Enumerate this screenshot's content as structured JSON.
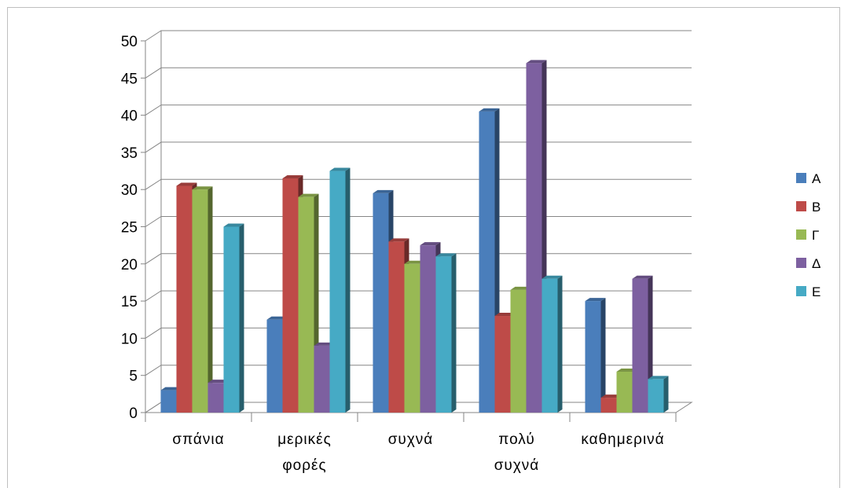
{
  "chart_data": {
    "type": "bar",
    "categories": [
      [
        "σπάνια"
      ],
      [
        "μερικές",
        "φορές"
      ],
      [
        "συχνά"
      ],
      [
        "πολύ",
        "συχνά"
      ],
      [
        "καθημερινά"
      ]
    ],
    "series": [
      {
        "name": "Α",
        "color": "#4a7ebb",
        "values": [
          3,
          12.5,
          29.5,
          40.5,
          15
        ]
      },
      {
        "name": "Β",
        "color": "#be4b48",
        "values": [
          30.5,
          31.5,
          23,
          13,
          2
        ]
      },
      {
        "name": "Γ",
        "color": "#98b954",
        "values": [
          30,
          29,
          20,
          16.5,
          5.5
        ]
      },
      {
        "name": "Δ",
        "color": "#7d60a0",
        "values": [
          4,
          9,
          22.5,
          47,
          18
        ]
      },
      {
        "name": "Ε",
        "color": "#46aac5",
        "values": [
          25,
          32.5,
          21,
          18,
          4.5
        ]
      }
    ],
    "ylim": [
      0,
      50
    ],
    "yticks": [
      0,
      5,
      10,
      15,
      20,
      25,
      30,
      35,
      40,
      45,
      50
    ],
    "grid": true,
    "legend_position": "right",
    "title": "",
    "xlabel": "",
    "ylabel": ""
  }
}
